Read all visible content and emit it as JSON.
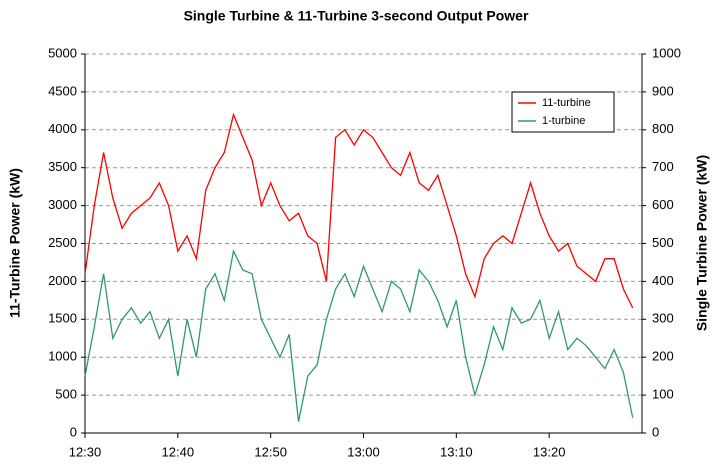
{
  "chart_data": {
    "type": "line",
    "title": "Single Turbine & 11-Turbine 3-second Output Power",
    "ylabel": "11-Turbine Power (kW)",
    "y2label": "Single Turbine Power (kW)",
    "categories": [
      "12:30",
      null,
      null,
      null,
      null,
      null,
      null,
      null,
      null,
      null,
      "12:40",
      null,
      null,
      null,
      null,
      null,
      null,
      null,
      null,
      null,
      "12:50",
      null,
      null,
      null,
      null,
      null,
      null,
      null,
      null,
      null,
      "13:00",
      null,
      null,
      null,
      null,
      null,
      null,
      null,
      null,
      null,
      "13:10",
      null,
      null,
      null,
      null,
      null,
      null,
      null,
      null,
      null,
      "13:20",
      null,
      null,
      null,
      null,
      null,
      null,
      null,
      null,
      null
    ],
    "series": [
      {
        "name": "11-turbine",
        "color": "#ff0000",
        "axis": "y",
        "values": [
          2100,
          3000,
          3700,
          3100,
          2700,
          2900,
          3000,
          3100,
          3300,
          3000,
          2400,
          2600,
          2300,
          3200,
          3500,
          3700,
          4200,
          3900,
          3600,
          3000,
          3300,
          3000,
          2800,
          2900,
          2600,
          2500,
          2000,
          3900,
          4000,
          3800,
          4000,
          3900,
          3700,
          3500,
          3400,
          3700,
          3300,
          3200,
          3400,
          3000,
          2600,
          2100,
          1800,
          2300,
          2500,
          2600,
          2500,
          2900,
          3300,
          2900,
          2600,
          2400,
          2500,
          2200,
          2100,
          2000,
          2300,
          2300,
          1900,
          1650
        ]
      },
      {
        "name": "1-turbine",
        "color": "#339966",
        "axis": "y2",
        "values": [
          150,
          280,
          420,
          250,
          300,
          330,
          290,
          320,
          250,
          300,
          150,
          300,
          200,
          380,
          420,
          350,
          480,
          430,
          420,
          300,
          250,
          200,
          260,
          30,
          150,
          180,
          300,
          380,
          420,
          360,
          440,
          380,
          320,
          400,
          380,
          320,
          430,
          400,
          350,
          280,
          350,
          200,
          100,
          180,
          280,
          220,
          330,
          290,
          300,
          350,
          250,
          320,
          220,
          250,
          230,
          200,
          170,
          220,
          160,
          40
        ]
      }
    ],
    "ylim": [
      0,
      5000
    ],
    "yticks": [
      0,
      500,
      1000,
      1500,
      2000,
      2500,
      3000,
      3500,
      4000,
      4500,
      5000
    ],
    "y2lim": [
      0,
      1000
    ],
    "y2ticks": [
      0,
      100,
      200,
      300,
      400,
      500,
      600,
      700,
      800,
      900,
      1000
    ],
    "grid": true,
    "legend": "upper-right"
  }
}
